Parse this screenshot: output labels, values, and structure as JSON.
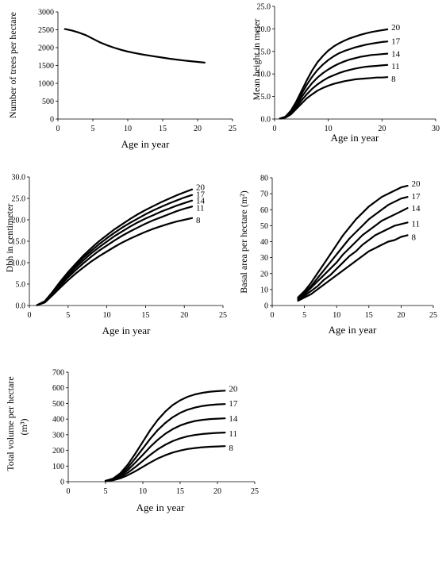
{
  "chart_data": [
    {
      "id": "trees",
      "type": "line",
      "xlabel": "Age in year",
      "ylabel": "Number of trees per hectare",
      "xlim": [
        0,
        25
      ],
      "ylim": [
        0,
        3000
      ],
      "xticks": [
        "0",
        "5",
        "10",
        "15",
        "20",
        "25"
      ],
      "yticks": [
        "0",
        "500",
        "1000",
        "1500",
        "2000",
        "2500",
        "3000"
      ],
      "series": [
        {
          "x": [
            1,
            2,
            3,
            4,
            5,
            6,
            7,
            8,
            9,
            10,
            11,
            12,
            13,
            14,
            15,
            16,
            17,
            18,
            19,
            20,
            21
          ],
          "values": [
            2520,
            2480,
            2420,
            2350,
            2250,
            2150,
            2070,
            2000,
            1940,
            1890,
            1850,
            1810,
            1780,
            1750,
            1720,
            1690,
            1665,
            1640,
            1620,
            1600,
            1580
          ]
        }
      ]
    },
    {
      "id": "height",
      "type": "line",
      "xlabel": "Age in year",
      "ylabel": "Mean height in meter",
      "xlim": [
        0,
        30
      ],
      "ylim": [
        0,
        25
      ],
      "xticks": [
        "0",
        "10",
        "20",
        "30"
      ],
      "yticks": [
        "0.0",
        "5.0",
        "10.0",
        "15.0",
        "20.0",
        "25.0"
      ],
      "series": [
        {
          "label": "20",
          "x": [
            1,
            2,
            3,
            4,
            5,
            6,
            7,
            8,
            9,
            10,
            11,
            12,
            13,
            14,
            15,
            16,
            17,
            18,
            19,
            20,
            21
          ],
          "values": [
            0.1,
            0.5,
            1.8,
            3.8,
            6.2,
            8.6,
            10.8,
            12.6,
            14.0,
            15.2,
            16.1,
            16.8,
            17.4,
            17.9,
            18.3,
            18.7,
            19.0,
            19.3,
            19.5,
            19.7,
            19.9
          ]
        },
        {
          "label": "17",
          "x": [
            1,
            2,
            3,
            4,
            5,
            6,
            7,
            8,
            9,
            10,
            11,
            12,
            13,
            14,
            15,
            16,
            17,
            18,
            19,
            20,
            21
          ],
          "values": [
            0.1,
            0.5,
            1.6,
            3.4,
            5.5,
            7.6,
            9.4,
            10.9,
            12.1,
            13.1,
            13.9,
            14.6,
            15.1,
            15.5,
            15.9,
            16.2,
            16.5,
            16.7,
            16.9,
            17.1,
            17.2
          ]
        },
        {
          "label": "14",
          "x": [
            1,
            2,
            3,
            4,
            5,
            6,
            7,
            8,
            9,
            10,
            11,
            12,
            13,
            14,
            15,
            16,
            17,
            18,
            19,
            20,
            21
          ],
          "values": [
            0.1,
            0.4,
            1.4,
            3.0,
            4.8,
            6.5,
            8.0,
            9.2,
            10.2,
            11.0,
            11.7,
            12.3,
            12.8,
            13.2,
            13.5,
            13.8,
            14.0,
            14.2,
            14.3,
            14.4,
            14.5
          ]
        },
        {
          "label": "11",
          "x": [
            1,
            2,
            3,
            4,
            5,
            6,
            7,
            8,
            9,
            10,
            11,
            12,
            13,
            14,
            15,
            16,
            17,
            18,
            19,
            20,
            21
          ],
          "values": [
            0.1,
            0.4,
            1.2,
            2.6,
            4.1,
            5.5,
            6.7,
            7.7,
            8.5,
            9.2,
            9.7,
            10.2,
            10.6,
            10.9,
            11.2,
            11.4,
            11.6,
            11.7,
            11.8,
            11.9,
            12.0
          ]
        },
        {
          "label": "8",
          "x": [
            1,
            2,
            3,
            4,
            5,
            6,
            7,
            8,
            9,
            10,
            11,
            12,
            13,
            14,
            15,
            16,
            17,
            18,
            19,
            20,
            21
          ],
          "values": [
            0.1,
            0.3,
            1.0,
            2.2,
            3.4,
            4.6,
            5.5,
            6.3,
            6.9,
            7.4,
            7.8,
            8.1,
            8.4,
            8.6,
            8.8,
            8.9,
            9.0,
            9.1,
            9.2,
            9.2,
            9.3
          ]
        }
      ]
    },
    {
      "id": "dbh",
      "type": "line",
      "xlabel": "Age in year",
      "ylabel": "Dbh in centimeter",
      "xlim": [
        0,
        25
      ],
      "ylim": [
        0,
        30
      ],
      "xticks": [
        "0",
        "5",
        "10",
        "15",
        "20",
        "25"
      ],
      "yticks": [
        "0.0",
        "5.0",
        "10.0",
        "15.0",
        "20.0",
        "25.0",
        "30.0"
      ],
      "series": [
        {
          "label": "20",
          "x": [
            1,
            2,
            3,
            4,
            5,
            6,
            7,
            8,
            9,
            10,
            11,
            12,
            13,
            14,
            15,
            16,
            17,
            18,
            19,
            20,
            21
          ],
          "values": [
            0.1,
            1.0,
            3.2,
            5.6,
            7.8,
            9.8,
            11.7,
            13.4,
            15.0,
            16.4,
            17.8,
            19.0,
            20.2,
            21.3,
            22.3,
            23.2,
            24.1,
            24.9,
            25.7,
            26.4,
            27.1
          ]
        },
        {
          "label": "17",
          "x": [
            1,
            2,
            3,
            4,
            5,
            6,
            7,
            8,
            9,
            10,
            11,
            12,
            13,
            14,
            15,
            16,
            17,
            18,
            19,
            20,
            21
          ],
          "values": [
            0.1,
            1.0,
            3.1,
            5.3,
            7.4,
            9.4,
            11.2,
            12.8,
            14.3,
            15.7,
            17.0,
            18.2,
            19.3,
            20.3,
            21.3,
            22.2,
            23.0,
            23.8,
            24.5,
            25.2,
            25.8
          ]
        },
        {
          "label": "14",
          "x": [
            1,
            2,
            3,
            4,
            5,
            6,
            7,
            8,
            9,
            10,
            11,
            12,
            13,
            14,
            15,
            16,
            17,
            18,
            19,
            20,
            21
          ],
          "values": [
            0.1,
            0.9,
            2.9,
            5.0,
            7.0,
            8.9,
            10.6,
            12.2,
            13.6,
            14.9,
            16.2,
            17.3,
            18.4,
            19.4,
            20.3,
            21.1,
            21.9,
            22.6,
            23.3,
            23.9,
            24.5
          ]
        },
        {
          "label": "11",
          "x": [
            1,
            2,
            3,
            4,
            5,
            6,
            7,
            8,
            9,
            10,
            11,
            12,
            13,
            14,
            15,
            16,
            17,
            18,
            19,
            20,
            21
          ],
          "values": [
            0.1,
            0.8,
            2.7,
            4.7,
            6.6,
            8.3,
            9.9,
            11.4,
            12.8,
            14.0,
            15.2,
            16.3,
            17.3,
            18.2,
            19.1,
            19.9,
            20.6,
            21.3,
            22.0,
            22.6,
            23.1
          ]
        },
        {
          "label": "8",
          "x": [
            1,
            2,
            3,
            4,
            5,
            6,
            7,
            8,
            9,
            10,
            11,
            12,
            13,
            14,
            15,
            16,
            17,
            18,
            19,
            20,
            21
          ],
          "values": [
            0.1,
            0.7,
            2.4,
            4.2,
            5.9,
            7.5,
            8.9,
            10.3,
            11.5,
            12.6,
            13.7,
            14.7,
            15.6,
            16.4,
            17.2,
            17.9,
            18.5,
            19.1,
            19.6,
            20.0,
            20.4
          ]
        }
      ]
    },
    {
      "id": "basal",
      "type": "line",
      "xlabel": "Age in year",
      "ylabel": "Basal area per hectare (m²)",
      "xlim": [
        0,
        25
      ],
      "ylim": [
        0,
        80
      ],
      "xticks": [
        "0",
        "5",
        "10",
        "15",
        "20",
        "25"
      ],
      "yticks": [
        "0",
        "10",
        "20",
        "30",
        "40",
        "50",
        "60",
        "70",
        "80"
      ],
      "series": [
        {
          "label": "20",
          "x": [
            4,
            5,
            6,
            7,
            8,
            9,
            10,
            11,
            12,
            13,
            14,
            15,
            16,
            17,
            18,
            19,
            20,
            21
          ],
          "values": [
            5,
            9,
            14,
            20,
            26,
            32,
            38,
            44,
            49,
            54,
            58,
            62,
            65,
            68,
            70,
            72,
            74,
            75
          ]
        },
        {
          "label": "17",
          "x": [
            4,
            5,
            6,
            7,
            8,
            9,
            10,
            11,
            12,
            13,
            14,
            15,
            16,
            17,
            18,
            19,
            20,
            21
          ],
          "values": [
            5,
            8,
            12,
            17,
            22,
            27,
            32,
            37,
            42,
            46,
            50,
            54,
            57,
            60,
            63,
            65,
            67,
            68
          ]
        },
        {
          "label": "14",
          "x": [
            4,
            5,
            6,
            7,
            8,
            9,
            10,
            11,
            12,
            13,
            14,
            15,
            16,
            17,
            18,
            19,
            20,
            21
          ],
          "values": [
            4,
            7,
            11,
            15,
            19,
            23,
            27,
            32,
            36,
            40,
            44,
            47,
            50,
            53,
            55,
            57,
            59,
            61
          ]
        },
        {
          "label": "11",
          "x": [
            4,
            5,
            6,
            7,
            8,
            9,
            10,
            11,
            12,
            13,
            14,
            15,
            16,
            17,
            18,
            19,
            20,
            21
          ],
          "values": [
            4,
            6,
            9,
            12,
            16,
            19,
            23,
            27,
            31,
            34,
            38,
            41,
            44,
            46,
            48,
            50,
            51,
            52
          ]
        },
        {
          "label": "8",
          "x": [
            4,
            5,
            6,
            7,
            8,
            9,
            10,
            11,
            12,
            13,
            14,
            15,
            16,
            17,
            18,
            19,
            20,
            21
          ],
          "values": [
            3,
            5,
            7,
            10,
            13,
            16,
            19,
            22,
            25,
            28,
            31,
            34,
            36,
            38,
            40,
            41,
            43,
            44
          ]
        }
      ]
    },
    {
      "id": "volume",
      "type": "line",
      "xlabel": "Age in year",
      "ylabel": "Total volume per hectare",
      "ylabel2": "(m³)",
      "xlim": [
        0,
        25
      ],
      "ylim": [
        0,
        700
      ],
      "xticks": [
        "0",
        "5",
        "10",
        "15",
        "20",
        "25"
      ],
      "yticks": [
        "0",
        "100",
        "200",
        "300",
        "400",
        "500",
        "600",
        "700"
      ],
      "series": [
        {
          "label": "20",
          "x": [
            5,
            6,
            7,
            8,
            9,
            10,
            11,
            12,
            13,
            14,
            15,
            16,
            17,
            18,
            19,
            20,
            21
          ],
          "values": [
            5,
            20,
            55,
            110,
            180,
            255,
            330,
            395,
            448,
            490,
            520,
            543,
            558,
            568,
            575,
            579,
            582
          ]
        },
        {
          "label": "17",
          "x": [
            5,
            6,
            7,
            8,
            9,
            10,
            11,
            12,
            13,
            14,
            15,
            16,
            17,
            18,
            19,
            20,
            21
          ],
          "values": [
            5,
            18,
            46,
            92,
            150,
            212,
            275,
            330,
            375,
            412,
            440,
            460,
            474,
            484,
            490,
            494,
            496
          ]
        },
        {
          "label": "14",
          "x": [
            5,
            6,
            7,
            8,
            9,
            10,
            11,
            12,
            13,
            14,
            15,
            16,
            17,
            18,
            19,
            20,
            21
          ],
          "values": [
            5,
            15,
            38,
            75,
            122,
            172,
            223,
            268,
            306,
            336,
            359,
            376,
            388,
            395,
            400,
            403,
            405
          ]
        },
        {
          "label": "11",
          "x": [
            5,
            6,
            7,
            8,
            9,
            10,
            11,
            12,
            13,
            14,
            15,
            16,
            17,
            18,
            19,
            20,
            21
          ],
          "values": [
            5,
            12,
            30,
            58,
            94,
            133,
            172,
            207,
            236,
            259,
            277,
            290,
            299,
            305,
            309,
            312,
            314
          ]
        },
        {
          "label": "8",
          "x": [
            5,
            6,
            7,
            8,
            9,
            10,
            11,
            12,
            13,
            14,
            15,
            16,
            17,
            18,
            19,
            20,
            21
          ],
          "values": [
            5,
            9,
            22,
            42,
            67,
            95,
            123,
            148,
            169,
            186,
            199,
            209,
            215,
            220,
            223,
            225,
            227
          ]
        }
      ]
    }
  ]
}
